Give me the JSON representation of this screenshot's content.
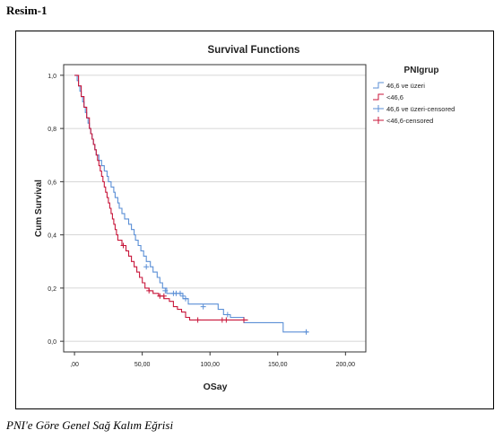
{
  "header": {
    "label": "Resim-1"
  },
  "caption": {
    "text": "PNI'e Göre Genel Sağ Kalım Eğrisi"
  },
  "chart_data": {
    "type": "line",
    "title": "Survival Functions",
    "xlabel": "OSay",
    "ylabel": "Cum Survival",
    "xlim": [
      -8,
      215
    ],
    "ylim": [
      -0.04,
      1.04
    ],
    "x_ticks": [
      0,
      50,
      100,
      150,
      200
    ],
    "x_tick_labels": [
      ",00",
      "50,00",
      "100,00",
      "150,00",
      "200,00"
    ],
    "y_ticks": [
      0,
      0.2,
      0.4,
      0.6,
      0.8,
      1.0
    ],
    "y_tick_labels": [
      "0,0",
      "0,2",
      "0,4",
      "0,6",
      "0,8",
      "1,0"
    ],
    "grid": true,
    "legend": {
      "title": "PNIgrup",
      "placement": "right",
      "entries": [
        "46,6 ve üzeri",
        "<46,6",
        "46,6 ve üzeri-censored",
        "<46,6-censored"
      ]
    },
    "series": [
      {
        "name": "46,6 ve üzeri",
        "color": "#5b8fd6",
        "steps": [
          [
            0,
            1.0
          ],
          [
            2,
            0.98
          ],
          [
            3,
            0.96
          ],
          [
            4,
            0.94
          ],
          [
            5,
            0.92
          ],
          [
            6,
            0.9
          ],
          [
            7,
            0.88
          ],
          [
            8,
            0.86
          ],
          [
            9,
            0.84
          ],
          [
            10,
            0.82
          ],
          [
            11,
            0.8
          ],
          [
            12,
            0.78
          ],
          [
            13,
            0.76
          ],
          [
            14,
            0.74
          ],
          [
            15,
            0.72
          ],
          [
            16,
            0.7
          ],
          [
            18,
            0.68
          ],
          [
            20,
            0.66
          ],
          [
            22,
            0.64
          ],
          [
            24,
            0.62
          ],
          [
            25,
            0.6
          ],
          [
            27,
            0.58
          ],
          [
            29,
            0.56
          ],
          [
            30,
            0.54
          ],
          [
            32,
            0.52
          ],
          [
            33,
            0.5
          ],
          [
            35,
            0.48
          ],
          [
            37,
            0.46
          ],
          [
            40,
            0.44
          ],
          [
            42,
            0.42
          ],
          [
            44,
            0.4
          ],
          [
            45,
            0.38
          ],
          [
            47,
            0.36
          ],
          [
            49,
            0.34
          ],
          [
            51,
            0.32
          ],
          [
            53,
            0.3
          ],
          [
            56,
            0.28
          ],
          [
            58,
            0.26
          ],
          [
            61,
            0.24
          ],
          [
            63,
            0.22
          ],
          [
            65,
            0.2
          ],
          [
            68,
            0.18
          ],
          [
            80,
            0.16
          ],
          [
            84,
            0.14
          ],
          [
            106,
            0.12
          ],
          [
            110,
            0.1
          ],
          [
            115,
            0.09
          ],
          [
            125,
            0.07
          ],
          [
            154,
            0.035
          ],
          [
            173,
            0.035
          ]
        ],
        "censored": [
          [
            53,
            0.28
          ],
          [
            67,
            0.19
          ],
          [
            73,
            0.18
          ],
          [
            75,
            0.18
          ],
          [
            78,
            0.18
          ],
          [
            80,
            0.17
          ],
          [
            82,
            0.16
          ],
          [
            95,
            0.13
          ],
          [
            113,
            0.1
          ],
          [
            171,
            0.035
          ]
        ]
      },
      {
        "name": "<46,6",
        "color": "#c8163a",
        "steps": [
          [
            0,
            1.0
          ],
          [
            3,
            0.96
          ],
          [
            5,
            0.92
          ],
          [
            7,
            0.88
          ],
          [
            9,
            0.84
          ],
          [
            11,
            0.8
          ],
          [
            12,
            0.78
          ],
          [
            13,
            0.76
          ],
          [
            14,
            0.74
          ],
          [
            15,
            0.72
          ],
          [
            16,
            0.7
          ],
          [
            17,
            0.68
          ],
          [
            18,
            0.66
          ],
          [
            19,
            0.64
          ],
          [
            20,
            0.62
          ],
          [
            21,
            0.6
          ],
          [
            22,
            0.58
          ],
          [
            23,
            0.56
          ],
          [
            24,
            0.54
          ],
          [
            25,
            0.52
          ],
          [
            26,
            0.5
          ],
          [
            27,
            0.48
          ],
          [
            28,
            0.46
          ],
          [
            29,
            0.44
          ],
          [
            30,
            0.42
          ],
          [
            31,
            0.4
          ],
          [
            32,
            0.38
          ],
          [
            35,
            0.36
          ],
          [
            38,
            0.34
          ],
          [
            40,
            0.32
          ],
          [
            42,
            0.3
          ],
          [
            44,
            0.28
          ],
          [
            46,
            0.26
          ],
          [
            48,
            0.24
          ],
          [
            50,
            0.22
          ],
          [
            52,
            0.2
          ],
          [
            55,
            0.19
          ],
          [
            58,
            0.18
          ],
          [
            62,
            0.17
          ],
          [
            66,
            0.16
          ],
          [
            70,
            0.15
          ],
          [
            73,
            0.13
          ],
          [
            76,
            0.12
          ],
          [
            79,
            0.11
          ],
          [
            82,
            0.09
          ],
          [
            85,
            0.08
          ],
          [
            128,
            0.08
          ]
        ],
        "censored": [
          [
            36,
            0.36
          ],
          [
            55,
            0.19
          ],
          [
            63,
            0.17
          ],
          [
            66,
            0.17
          ],
          [
            91,
            0.08
          ],
          [
            109,
            0.08
          ],
          [
            112,
            0.08
          ],
          [
            125,
            0.08
          ]
        ]
      }
    ]
  }
}
